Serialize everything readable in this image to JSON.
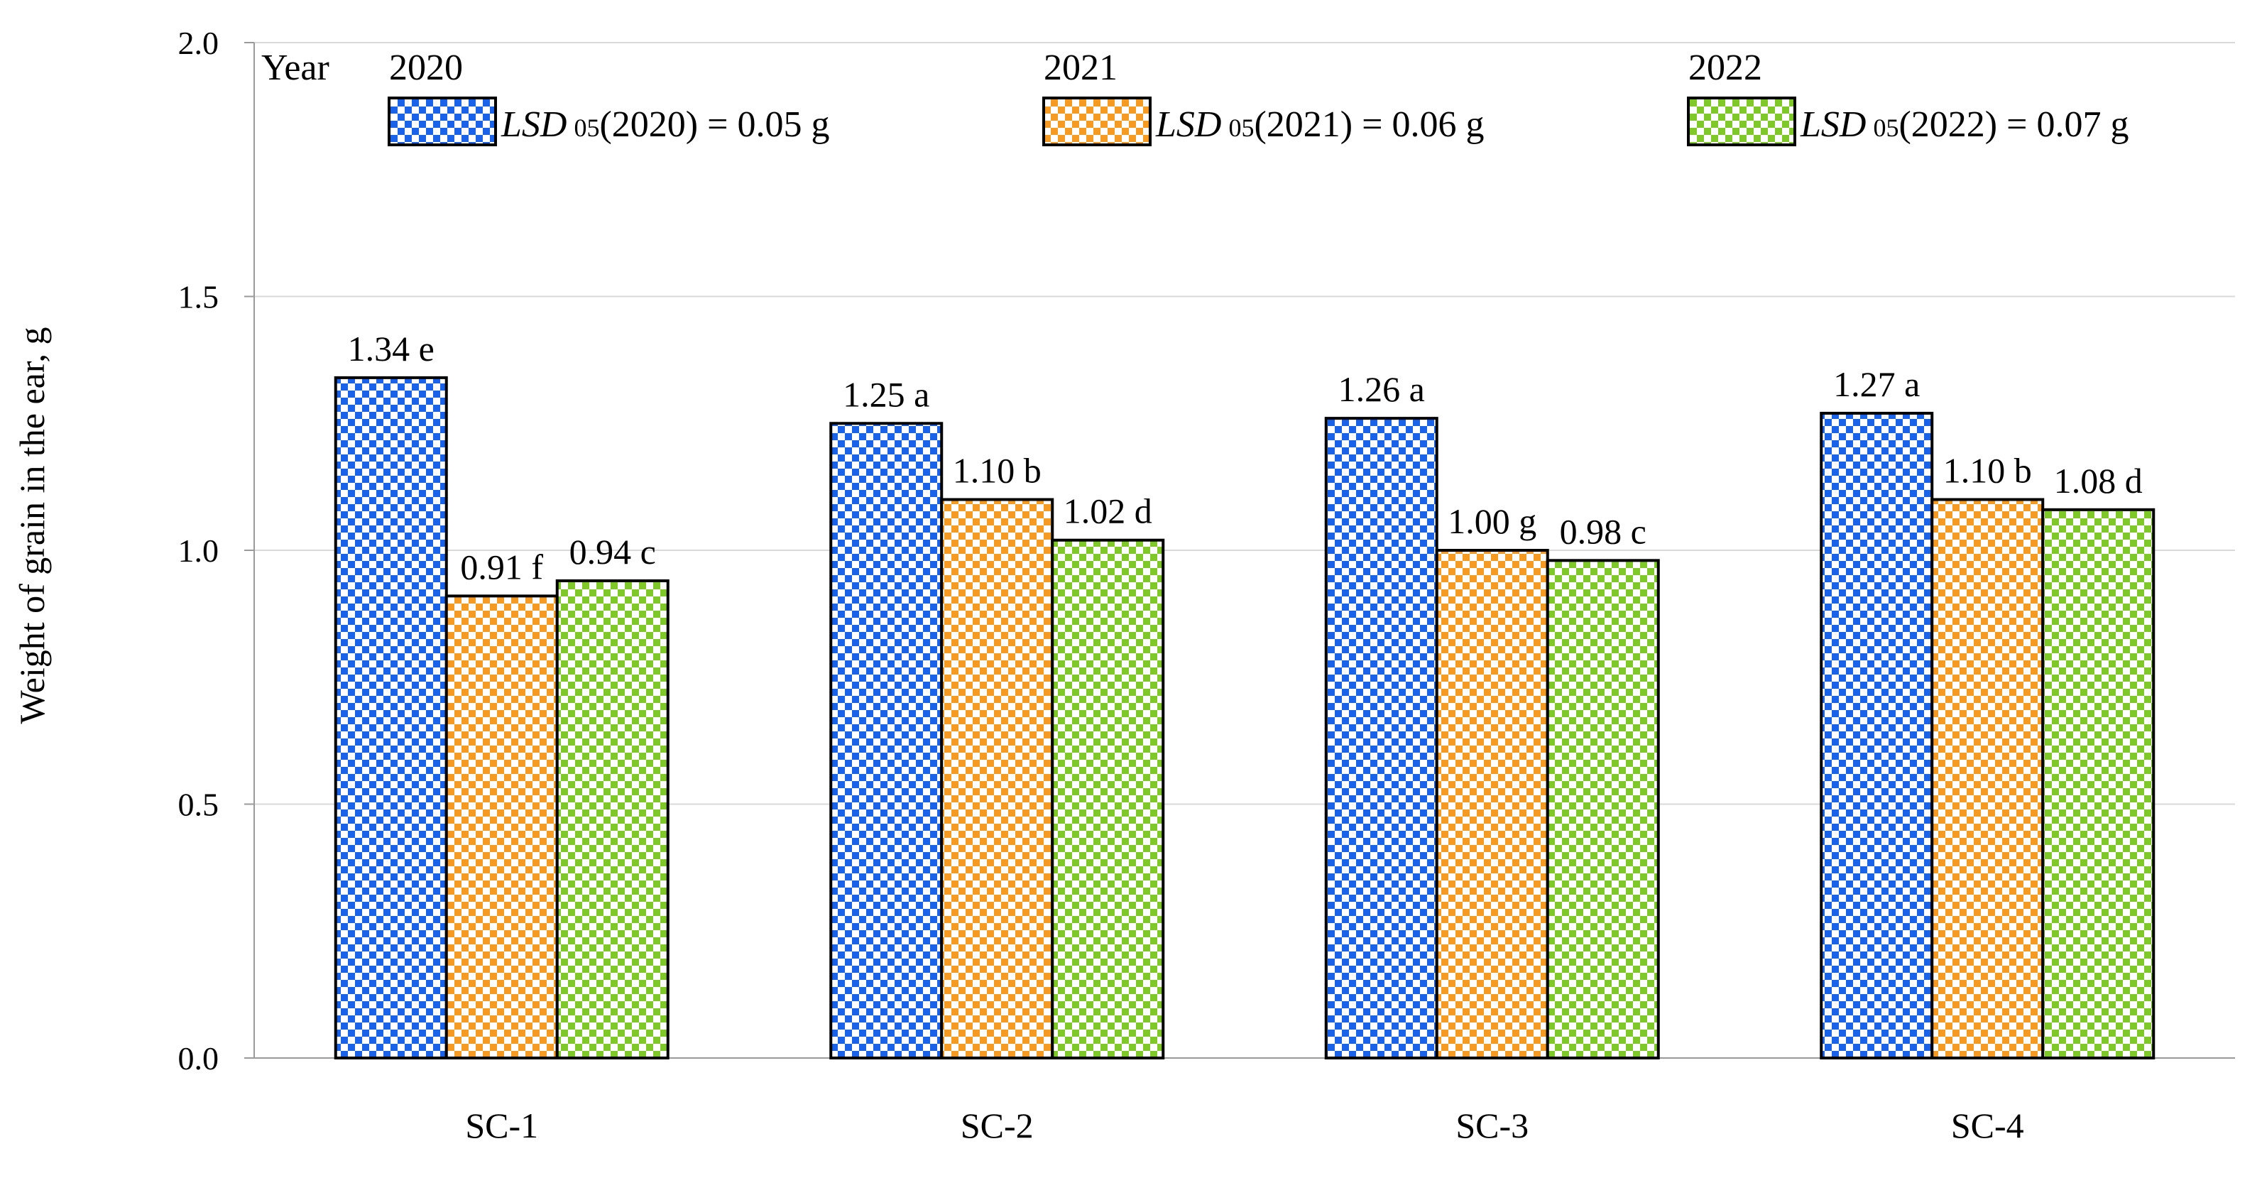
{
  "chart_data": {
    "type": "bar",
    "title": "",
    "xlabel": "",
    "ylabel": "Weight of grain in the ear, g",
    "ylim": [
      0,
      2.0
    ],
    "yticks": [
      "0.0",
      "0.5",
      "1.0",
      "1.5",
      "2.0"
    ],
    "grid": true,
    "categories": [
      "SC-1",
      "SC-2",
      "SC-3",
      "SC-4"
    ],
    "legend": {
      "title": "Year",
      "placement": "top",
      "entries": [
        {
          "name": "2020",
          "lsd_prefix": "LSD",
          "lsd_sub": "05",
          "lsd_rest": "(2020) = 0.05 g"
        },
        {
          "name": "2021",
          "lsd_prefix": "LSD",
          "lsd_sub": "05",
          "lsd_rest": "(2021) = 0.06 g"
        },
        {
          "name": "2022",
          "lsd_prefix": "LSD",
          "lsd_sub": "05",
          "lsd_rest": "(2022) = 0.07 g"
        }
      ]
    },
    "series": [
      {
        "name": "2020",
        "color": "#1a63e8",
        "values": [
          1.34,
          1.25,
          1.26,
          1.27
        ],
        "labels": [
          "1.34 e",
          "1.25 a",
          "1.26 a",
          "1.27 a"
        ]
      },
      {
        "name": "2021",
        "color": "#f59a22",
        "values": [
          0.91,
          1.1,
          1.0,
          1.1
        ],
        "labels": [
          "0.91 f",
          "1.10 b",
          "1.00 g",
          "1.10 b"
        ]
      },
      {
        "name": "2022",
        "color": "#7ec82a",
        "values": [
          0.94,
          1.02,
          0.98,
          1.08
        ],
        "labels": [
          "0.94 c",
          "1.02 d",
          "0.98 c",
          "1.08 d"
        ]
      }
    ]
  }
}
